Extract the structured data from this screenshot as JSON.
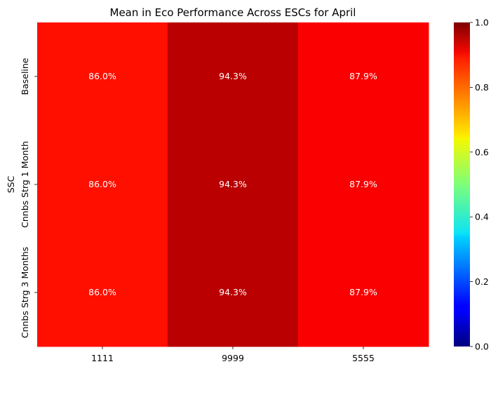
{
  "chart_data": {
    "type": "heatmap",
    "title": "Mean in Eco Performance Across ESCs for April",
    "xlabel": "",
    "ylabel": "SSC",
    "x_categories": [
      "1111",
      "9999",
      "5555"
    ],
    "y_categories": [
      "Baseline",
      "Cnnbs Strg 1 Month",
      "Cnnbs Strg 3 Months"
    ],
    "values": [
      [
        0.86,
        0.943,
        0.879
      ],
      [
        0.86,
        0.943,
        0.879
      ],
      [
        0.86,
        0.943,
        0.879
      ]
    ],
    "cell_labels": [
      [
        "86.0%",
        "94.3%",
        "87.9%"
      ],
      [
        "86.0%",
        "94.3%",
        "87.9%"
      ],
      [
        "86.0%",
        "94.3%",
        "87.9%"
      ]
    ],
    "colormap": "jet",
    "vmin": 0.0,
    "vmax": 1.0,
    "colorbar_ticks": [
      "0.0",
      "0.2",
      "0.4",
      "0.6",
      "0.8",
      "1.0"
    ],
    "colorbar_tick_values": [
      0.0,
      0.2,
      0.4,
      0.6,
      0.8,
      1.0
    ],
    "grid": false
  }
}
